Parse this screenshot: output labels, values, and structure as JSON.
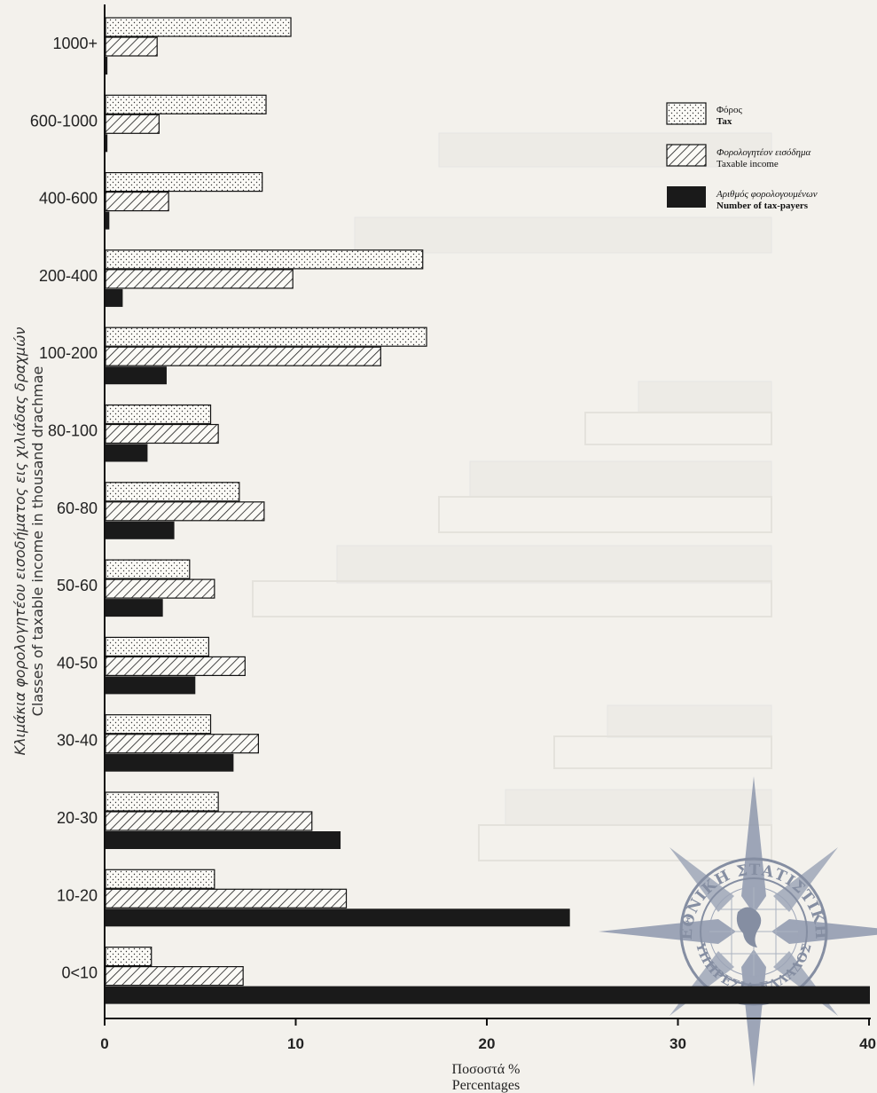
{
  "chart_data": {
    "type": "bar",
    "orientation": "horizontal",
    "categories": [
      "1000+",
      "600-1000",
      "400-600",
      "200-400",
      "100-200",
      "80-100",
      "60-80",
      "50-60",
      "40-50",
      "30-40",
      "20-30",
      "10-20",
      "0<10"
    ],
    "series": [
      {
        "name": "Φόρος Tax",
        "name_gr": "Φόρος",
        "name_en": "Tax",
        "pattern": "dots",
        "values": [
          9.7,
          8.4,
          8.2,
          16.6,
          16.8,
          5.5,
          7.0,
          4.4,
          5.4,
          5.5,
          5.9,
          5.7,
          2.4
        ]
      },
      {
        "name": "Φορολογητέον εισόδημα Taxable income",
        "name_gr": "Φορολογητέον εισόδημα",
        "name_en": "Taxable income",
        "pattern": "hatch",
        "values": [
          2.7,
          2.8,
          3.3,
          9.8,
          14.4,
          5.9,
          8.3,
          5.7,
          7.3,
          8.0,
          10.8,
          12.6,
          7.2
        ]
      },
      {
        "name": "Αριθμός φορολογουμένων Number of tax-payers",
        "name_gr": "Αριθμός φορολογουμένων",
        "name_en": "Number of tax-payers",
        "pattern": "solid",
        "values": [
          0.1,
          0.1,
          0.2,
          0.9,
          3.2,
          2.2,
          3.6,
          3.0,
          4.7,
          6.7,
          12.3,
          24.3,
          40.0
        ]
      }
    ],
    "xlabel_gr": "Ποσοστά %",
    "xlabel_en": "Percentages",
    "ylabel_gr": "Κλιμάκια φορολογητέου εισοδήματος εις χιλιάδας δραχμών",
    "ylabel_en": "Classes of taxable income in thousand drachmae",
    "xticks": [
      "0",
      "10",
      "20",
      "30",
      "40"
    ],
    "xlim": [
      0,
      40
    ],
    "legend_position": "top-right",
    "grid": false
  },
  "watermark": {
    "text_top": "ΕΘΝΙΚΗ ΣΤΑΤΙΣΤΙΚΗ",
    "text_bottom": "ΥΠΗΡΕΣΙΑ ΕΛΛΑΔΟΣ"
  },
  "colors": {
    "ink": "#1a1a1a",
    "paper": "#f3f1ec",
    "watermark": "#6a7690"
  }
}
